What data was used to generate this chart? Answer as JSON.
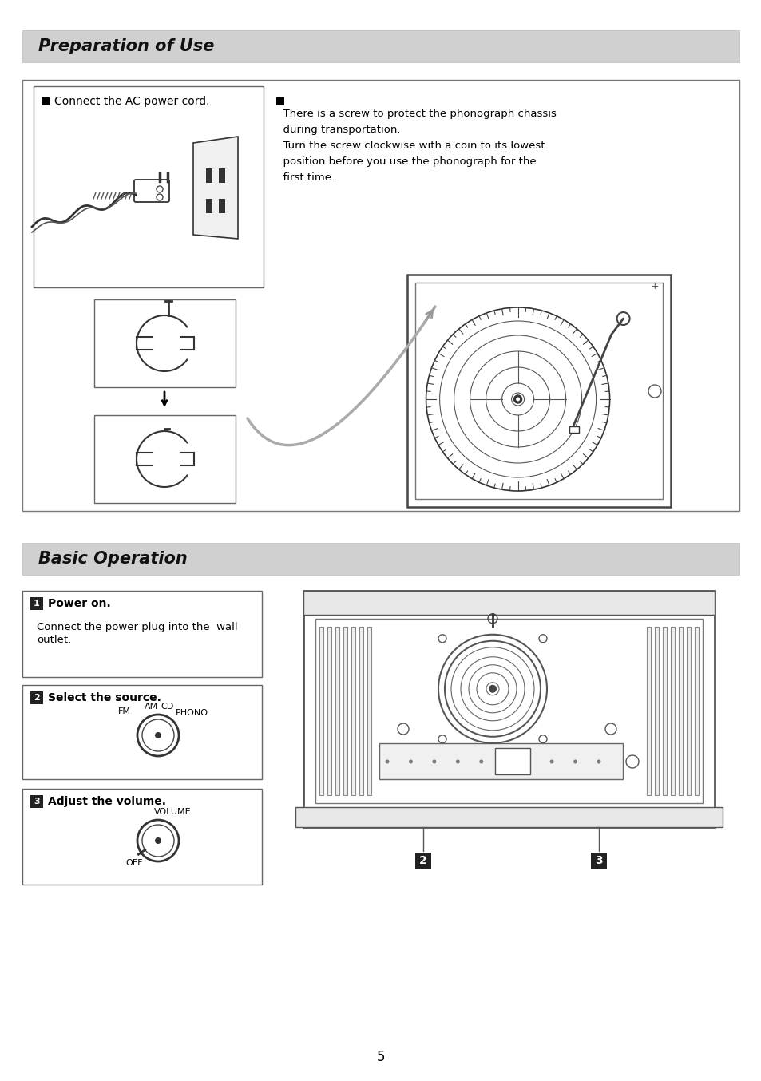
{
  "page_bg": "#ffffff",
  "header_bg": "#d0d0d0",
  "section1_title": "Preparation of Use",
  "section2_title": "Basic Operation",
  "prep_text1": "Connect the AC power cord.",
  "prep_text2_line1": "  There is a screw to protect the phonograph chassis",
  "prep_text2_line2": "  during transportation.",
  "prep_text2_line3": "  Turn the screw clockwise with a coin to its lowest",
  "prep_text2_line4": "  position before you use the phonograph for the",
  "prep_text2_line5": "  first time.",
  "basic_box1_label": "1",
  "basic_box1_title": "Power on.",
  "basic_box1_body1": "  Connect the power plug into the  wall",
  "basic_box1_body2": "  outlet.",
  "basic_box2_label": "2",
  "basic_box2_title": "Select the source.",
  "basic_box3_label": "3",
  "basic_box3_title": "Adjust the volume.",
  "fm_label": "FM",
  "am_label": "AM",
  "cd_label": "CD",
  "phono_label": "PHONO",
  "volume_label": "VOLUME",
  "off_label": "OFF",
  "label2": "2",
  "label3": "3",
  "page_number": "5"
}
